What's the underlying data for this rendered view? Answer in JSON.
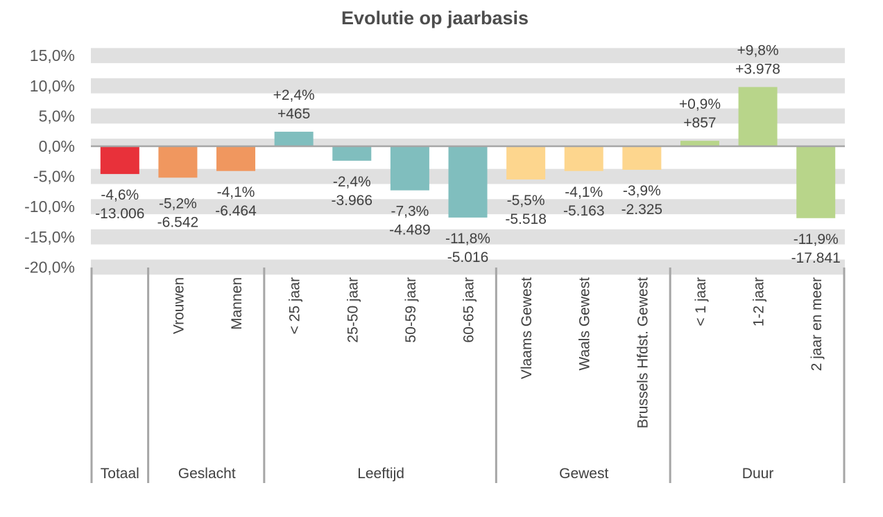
{
  "chart_data": {
    "type": "bar",
    "title": "Evolutie op jaarbasis",
    "xlabel": "",
    "ylabel": "",
    "ylim": [
      -20,
      15
    ],
    "yticks": [
      "15,0%",
      "10,0%",
      "5,0%",
      "0,0%",
      "-5,0%",
      "-10,0%",
      "-15,0%",
      "-20,0%"
    ],
    "ytick_values": [
      15,
      10,
      5,
      0,
      -5,
      -10,
      -15,
      -20
    ],
    "grid": "alternating horizontal bands",
    "legend": "none",
    "categories": [
      "Totaal",
      "Vrouwen",
      "Mannen",
      "< 25 jaar",
      "25-50 jaar",
      "50-59 jaar",
      "60-65 jaar",
      "Vlaams Gewest",
      "Waals Gewest",
      "Brussels Hfdst. Gewest",
      "< 1 jaar",
      "1-2 jaar",
      "2 jaar en meer"
    ],
    "values": [
      -4.6,
      -5.2,
      -4.1,
      2.4,
      -2.4,
      -7.3,
      -11.8,
      -5.5,
      -4.1,
      -3.9,
      0.9,
      9.8,
      -11.9
    ],
    "pct_labels": [
      "-4,6%",
      "-5,2%",
      "-4,1%",
      "+2,4%",
      "-2,4%",
      "-7,3%",
      "-11,8%",
      "-5,5%",
      "-4,1%",
      "-3,9%",
      "+0,9%",
      "+9,8%",
      "-11,9%"
    ],
    "count_labels": [
      "-13.006",
      "-6.542",
      "-6.464",
      "+465",
      "-3.966",
      "-4.489",
      "-5.016",
      "-5.518",
      "-5.163",
      "-2.325",
      "+857",
      "+3.978",
      "-17.841"
    ],
    "groups": [
      {
        "label": "Totaal",
        "size": 1,
        "color": "#e8313a"
      },
      {
        "label": "Geslacht",
        "size": 2,
        "color": "#f0975f"
      },
      {
        "label": "Leeftijd",
        "size": 4,
        "color": "#80bebe"
      },
      {
        "label": "Gewest",
        "size": 3,
        "color": "#fdd68e"
      },
      {
        "label": "Duur",
        "size": 3,
        "color": "#b8d58a"
      }
    ],
    "category_label_hidden_for": [
      "Totaal"
    ]
  }
}
